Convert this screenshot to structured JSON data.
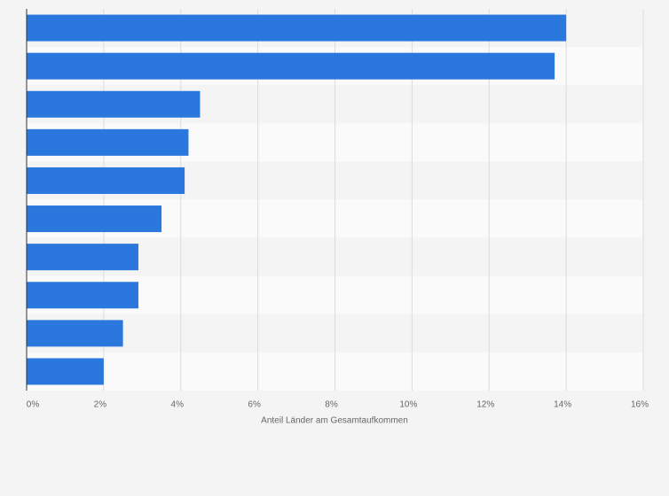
{
  "chart_data": {
    "type": "hbar",
    "categories": [
      null,
      null,
      null,
      null,
      null,
      null,
      null,
      null,
      null,
      null
    ],
    "values": [
      14.0,
      13.7,
      4.5,
      4.2,
      4.1,
      3.5,
      2.9,
      2.9,
      2.5,
      2.0
    ],
    "color": "#2a77dd",
    "xlabel": "Anteil Länder am Gesamtaufkommen",
    "xlim": [
      0,
      16
    ],
    "xticks": [
      {
        "value": 0,
        "label": "0%"
      },
      {
        "value": 2,
        "label": "2%"
      },
      {
        "value": 4,
        "label": "4%"
      },
      {
        "value": 6,
        "label": "6%"
      },
      {
        "value": 8,
        "label": "8%"
      },
      {
        "value": 10,
        "label": "10%"
      },
      {
        "value": 12,
        "label": "12%"
      },
      {
        "value": 14,
        "label": "14%"
      },
      {
        "value": 16,
        "label": "16%"
      }
    ],
    "grid": true
  }
}
